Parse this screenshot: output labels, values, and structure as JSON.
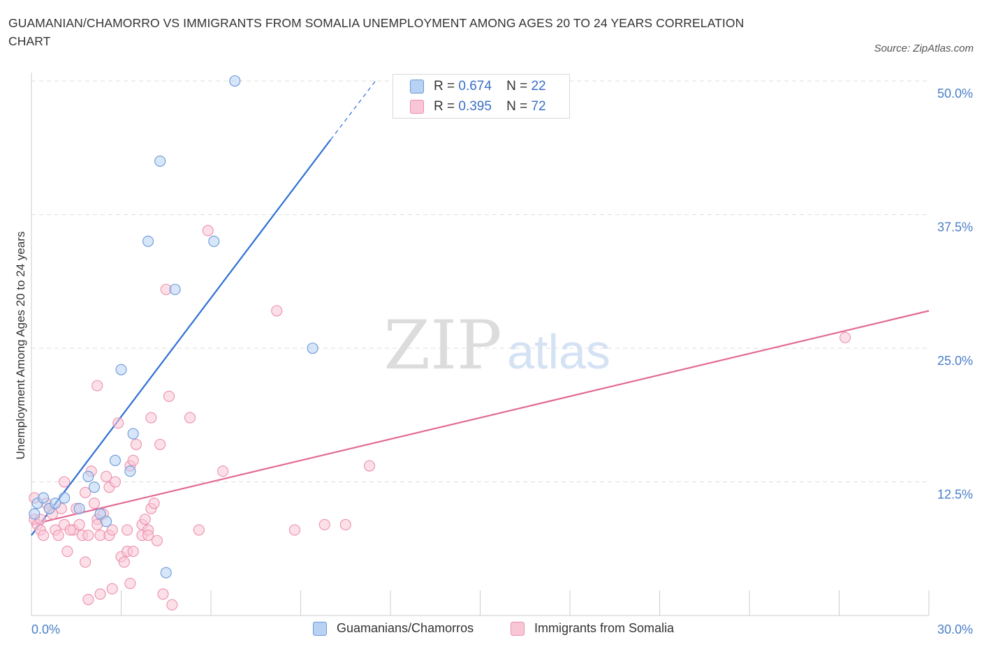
{
  "title_lines": [
    "Guamanian/Chamorro vs Immigrants from Somalia Unemployment Among Ages 20 to 24 years Correlation",
    "Chart"
  ],
  "source": "Source: ZipAtlas.com",
  "watermark": {
    "zip": "ZIP",
    "atlas": "atlas"
  },
  "colors": {
    "blue_fill": "#b8d2f4",
    "blue_stroke": "#6a98d8",
    "blue_line": "#2f6fd4",
    "pink_fill": "#f9c6d6",
    "pink_stroke": "#ec8fae",
    "pink_line": "#e26a95",
    "grid": "#dddddd",
    "axis_label": "#4a7ec8"
  },
  "legend": [
    {
      "r_label": "R =",
      "r_value": "0.674",
      "n_label": "N =",
      "n_value": "22"
    },
    {
      "r_label": "R =",
      "r_value": "0.395",
      "n_label": "N =",
      "n_value": "72"
    }
  ],
  "chart_data": {
    "type": "scatter",
    "title": "Guamanian/Chamorro vs Immigrants from Somalia Unemployment Among Ages 20 to 24 years Correlation Chart",
    "xlabel": "",
    "ylabel": "Unemployment Among Ages 20 to 24 years",
    "xlim": [
      0,
      30
    ],
    "ylim": [
      0,
      50
    ],
    "x_tick_labels": [
      "0.0%",
      "30.0%"
    ],
    "y_ticks": [
      12.5,
      25.0,
      37.5,
      50.0
    ],
    "y_tick_labels": [
      "12.5%",
      "25.0%",
      "37.5%",
      "50.0%"
    ],
    "grid": true,
    "legend_position": "top-center",
    "series": [
      {
        "name": "Guamanians/Chamorros",
        "color": "blue",
        "points": [
          [
            0.2,
            10.5
          ],
          [
            0.4,
            11.0
          ],
          [
            0.6,
            10.0
          ],
          [
            0.8,
            10.5
          ],
          [
            1.1,
            11.0
          ],
          [
            1.6,
            10.0
          ],
          [
            1.9,
            13.0
          ],
          [
            2.1,
            12.0
          ],
          [
            2.3,
            9.5
          ],
          [
            2.5,
            8.8
          ],
          [
            2.8,
            14.5
          ],
          [
            3.0,
            23.0
          ],
          [
            3.3,
            13.5
          ],
          [
            3.4,
            17.0
          ],
          [
            3.9,
            35.0
          ],
          [
            4.3,
            42.5
          ],
          [
            4.5,
            4.0
          ],
          [
            4.8,
            30.5
          ],
          [
            6.1,
            35.0
          ],
          [
            6.8,
            50.0
          ],
          [
            9.4,
            25.0
          ],
          [
            0.1,
            9.5
          ]
        ],
        "trend": {
          "x": [
            0.0,
            10.0
          ],
          "y": [
            7.5,
            44.5
          ],
          "dashed_x": [
            10.0,
            11.5
          ],
          "dashed_y": [
            44.5,
            50.0
          ]
        }
      },
      {
        "name": "Immigrants from Somalia",
        "color": "pink",
        "points": [
          [
            0.1,
            11.0
          ],
          [
            0.1,
            9.0
          ],
          [
            0.2,
            8.5
          ],
          [
            0.3,
            8.0
          ],
          [
            0.4,
            7.5
          ],
          [
            0.5,
            10.5
          ],
          [
            0.6,
            10.0
          ],
          [
            0.7,
            9.5
          ],
          [
            0.8,
            8.0
          ],
          [
            0.9,
            7.5
          ],
          [
            1.0,
            10.0
          ],
          [
            1.1,
            8.5
          ],
          [
            1.1,
            12.5
          ],
          [
            1.2,
            6.0
          ],
          [
            1.4,
            8.0
          ],
          [
            1.5,
            10.0
          ],
          [
            1.6,
            8.5
          ],
          [
            1.7,
            7.5
          ],
          [
            1.8,
            11.5
          ],
          [
            1.8,
            5.0
          ],
          [
            1.9,
            7.5
          ],
          [
            1.9,
            1.5
          ],
          [
            2.0,
            13.5
          ],
          [
            2.1,
            10.5
          ],
          [
            2.2,
            9.0
          ],
          [
            2.2,
            8.5
          ],
          [
            2.2,
            21.5
          ],
          [
            2.3,
            7.5
          ],
          [
            2.3,
            2.0
          ],
          [
            2.5,
            13.0
          ],
          [
            2.6,
            12.0
          ],
          [
            2.6,
            7.5
          ],
          [
            2.7,
            8.0
          ],
          [
            2.7,
            2.5
          ],
          [
            2.8,
            12.5
          ],
          [
            2.9,
            18.0
          ],
          [
            3.0,
            5.5
          ],
          [
            3.1,
            5.0
          ],
          [
            3.2,
            6.0
          ],
          [
            3.2,
            8.0
          ],
          [
            3.3,
            14.0
          ],
          [
            3.3,
            3.0
          ],
          [
            3.4,
            14.5
          ],
          [
            3.4,
            6.0
          ],
          [
            3.5,
            16.0
          ],
          [
            3.7,
            8.5
          ],
          [
            3.7,
            7.5
          ],
          [
            3.8,
            9.0
          ],
          [
            3.9,
            8.0
          ],
          [
            3.9,
            7.5
          ],
          [
            4.0,
            10.0
          ],
          [
            4.0,
            18.5
          ],
          [
            4.1,
            10.5
          ],
          [
            4.2,
            7.0
          ],
          [
            4.3,
            16.0
          ],
          [
            4.4,
            2.0
          ],
          [
            4.5,
            30.5
          ],
          [
            4.6,
            20.5
          ],
          [
            4.7,
            1.0
          ],
          [
            5.3,
            18.5
          ],
          [
            5.6,
            8.0
          ],
          [
            5.9,
            36.0
          ],
          [
            6.4,
            13.5
          ],
          [
            8.2,
            28.5
          ],
          [
            8.8,
            8.0
          ],
          [
            9.8,
            8.5
          ],
          [
            10.5,
            8.5
          ],
          [
            11.3,
            14.0
          ],
          [
            27.2,
            26.0
          ],
          [
            0.3,
            9.0
          ],
          [
            1.3,
            8.0
          ],
          [
            2.4,
            9.5
          ]
        ],
        "trend": {
          "x": [
            0.0,
            30.0
          ],
          "y": [
            8.5,
            28.5
          ]
        }
      }
    ]
  }
}
